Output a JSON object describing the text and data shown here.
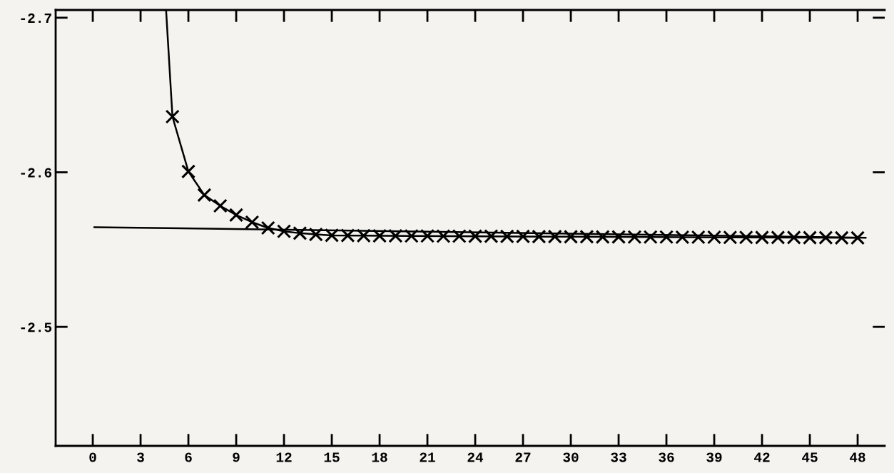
{
  "chart_data": {
    "type": "line",
    "xlim": [
      -2.33,
      49.7
    ],
    "ylim": [
      -2.423,
      -2.705
    ],
    "xticks": [
      0,
      3,
      6,
      9,
      12,
      15,
      18,
      21,
      24,
      27,
      30,
      33,
      36,
      39,
      42,
      45,
      48
    ],
    "yticks": [
      {
        "value": -2.7,
        "label": "-2.7"
      },
      {
        "value": -2.6,
        "label": "-2.6"
      },
      {
        "value": -2.5,
        "label": "-2.5"
      }
    ],
    "grid": false,
    "legend": false,
    "line_style": "solid",
    "series": [
      {
        "color": "#000000",
        "marker": "none",
        "x": [
          0.1,
          48.5
        ],
        "values": [
          -2.5645,
          -2.5577
        ]
      },
      {
        "color": "#000000",
        "marker": "none",
        "x": [
          4.6,
          5,
          6,
          7,
          8,
          9,
          10,
          11,
          12,
          13,
          14,
          15,
          20,
          30,
          40,
          48
        ],
        "values": [
          -2.705,
          -2.636,
          -2.6005,
          -2.5853,
          -2.5783,
          -2.5724,
          -2.5677,
          -2.564,
          -2.5618,
          -2.5606,
          -2.5598,
          -2.5592,
          -2.5588,
          -2.5583,
          -2.5579,
          -2.5576
        ]
      },
      {
        "type": "scatter",
        "color": "#000000",
        "marker": "cross",
        "x": [
          5,
          6,
          7,
          8,
          9,
          10,
          11,
          12,
          13,
          14,
          15,
          16,
          17,
          18,
          19,
          20,
          21,
          22,
          23,
          24,
          25,
          26,
          27,
          28,
          29,
          30,
          31,
          32,
          33,
          34,
          35,
          36,
          37,
          38,
          39,
          40,
          41,
          42,
          43,
          44,
          45,
          46,
          47,
          48
        ],
        "values": [
          -2.636,
          -2.6005,
          -2.5853,
          -2.5783,
          -2.5724,
          -2.5677,
          -2.564,
          -2.5618,
          -2.5606,
          -2.5598,
          -2.5592,
          -2.5591,
          -2.559,
          -2.5589,
          -2.5589,
          -2.5588,
          -2.5588,
          -2.5587,
          -2.5587,
          -2.5586,
          -2.5586,
          -2.5585,
          -2.5585,
          -2.5584,
          -2.5584,
          -2.5583,
          -2.5583,
          -2.5582,
          -2.5582,
          -2.5581,
          -2.5581,
          -2.5581,
          -2.558,
          -2.558,
          -2.558,
          -2.5579,
          -2.5579,
          -2.5578,
          -2.5578,
          -2.5578,
          -2.5577,
          -2.5577,
          -2.5576,
          -2.5576
        ]
      }
    ]
  }
}
